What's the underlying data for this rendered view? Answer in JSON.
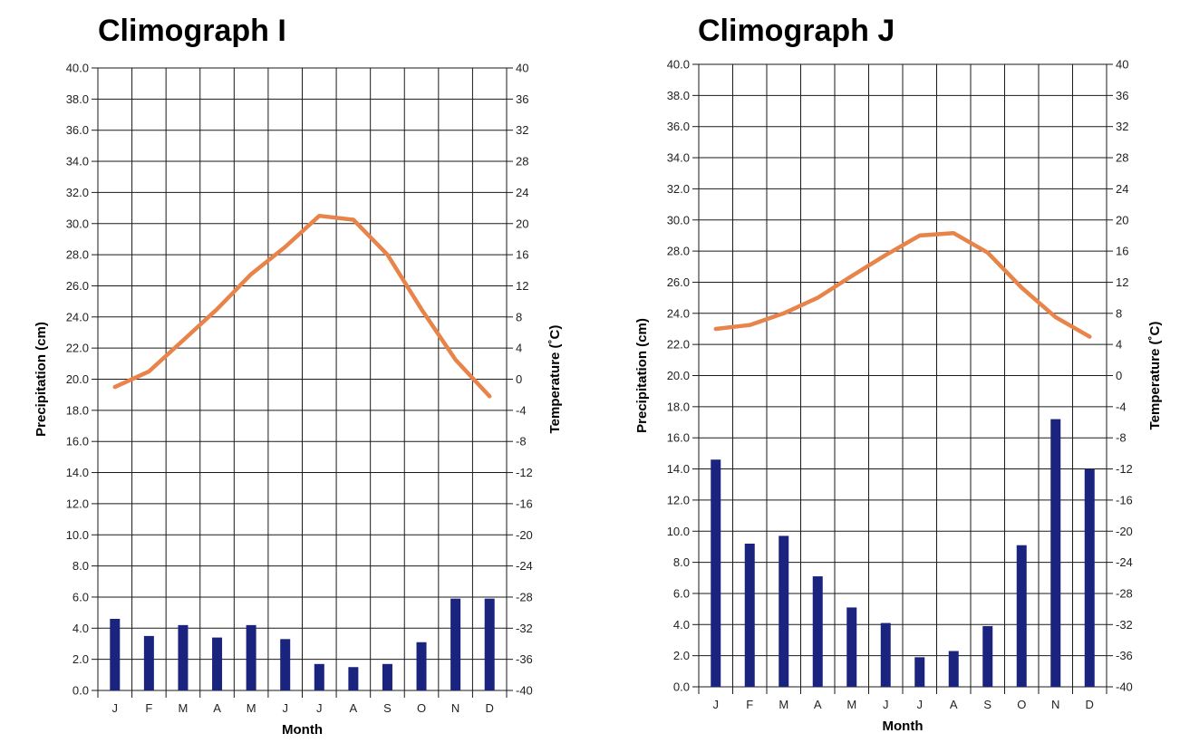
{
  "chart_data": [
    {
      "type": "bar",
      "title": "Climograph I",
      "xlabel": "Month",
      "ylabel": "Precipitation (cm)",
      "ylabel_right": "Temperature (˚C)",
      "categories": [
        "J",
        "F",
        "M",
        "A",
        "M",
        "J",
        "J",
        "A",
        "S",
        "O",
        "N",
        "D"
      ],
      "ylim": [
        0,
        40
      ],
      "ylim_right": [
        -40,
        40
      ],
      "left_ticks": [
        "0.0",
        "2.0",
        "4.0",
        "6.0",
        "8.0",
        "10.0",
        "12.0",
        "14.0",
        "16.0",
        "18.0",
        "20.0",
        "22.0",
        "24.0",
        "26.0",
        "28.0",
        "30.0",
        "32.0",
        "34.0",
        "36.0",
        "38.0",
        "40.0"
      ],
      "right_ticks": [
        "-40",
        "-36",
        "-32",
        "-28",
        "-24",
        "-20",
        "-16",
        "-12",
        "-8",
        "-4",
        "0",
        "4",
        "8",
        "12",
        "16",
        "20",
        "24",
        "28",
        "32",
        "36",
        "40"
      ],
      "series": [
        {
          "name": "Precipitation",
          "kind": "bar",
          "color": "#1a237e",
          "values": [
            4.6,
            3.5,
            4.2,
            3.4,
            4.2,
            3.3,
            1.7,
            1.5,
            1.7,
            3.1,
            5.9,
            5.9
          ]
        },
        {
          "name": "Temperature",
          "kind": "line",
          "color": "#e8834a",
          "values": [
            -1,
            1,
            5,
            9,
            13.5,
            17,
            21,
            20.5,
            16,
            9,
            2.5,
            -2.2
          ]
        }
      ]
    },
    {
      "type": "bar",
      "title": "Climograph J",
      "xlabel": "Month",
      "ylabel": "Precipitation (cm)",
      "ylabel_right": "Temperature (˚C)",
      "categories": [
        "J",
        "F",
        "M",
        "A",
        "M",
        "J",
        "J",
        "A",
        "S",
        "O",
        "N",
        "D"
      ],
      "ylim": [
        0,
        40
      ],
      "ylim_right": [
        -40,
        40
      ],
      "left_ticks": [
        "0.0",
        "2.0",
        "4.0",
        "6.0",
        "8.0",
        "10.0",
        "12.0",
        "14.0",
        "16.0",
        "18.0",
        "20.0",
        "22.0",
        "24.0",
        "26.0",
        "28.0",
        "30.0",
        "32.0",
        "34.0",
        "36.0",
        "38.0",
        "40.0"
      ],
      "right_ticks": [
        "-40",
        "-36",
        "-32",
        "-28",
        "-24",
        "-20",
        "-16",
        "-12",
        "-8",
        "-4",
        "0",
        "4",
        "8",
        "12",
        "16",
        "20",
        "24",
        "28",
        "32",
        "36",
        "40"
      ],
      "series": [
        {
          "name": "Precipitation",
          "kind": "bar",
          "color": "#1a237e",
          "values": [
            14.6,
            9.2,
            9.7,
            7.1,
            5.1,
            4.1,
            1.9,
            2.3,
            3.9,
            9.1,
            17.2,
            14.0
          ]
        },
        {
          "name": "Temperature",
          "kind": "line",
          "color": "#e8834a",
          "values": [
            6,
            6.5,
            8,
            10,
            12.8,
            15.5,
            18,
            18.3,
            15.8,
            11.3,
            7.5,
            5
          ]
        }
      ]
    }
  ]
}
